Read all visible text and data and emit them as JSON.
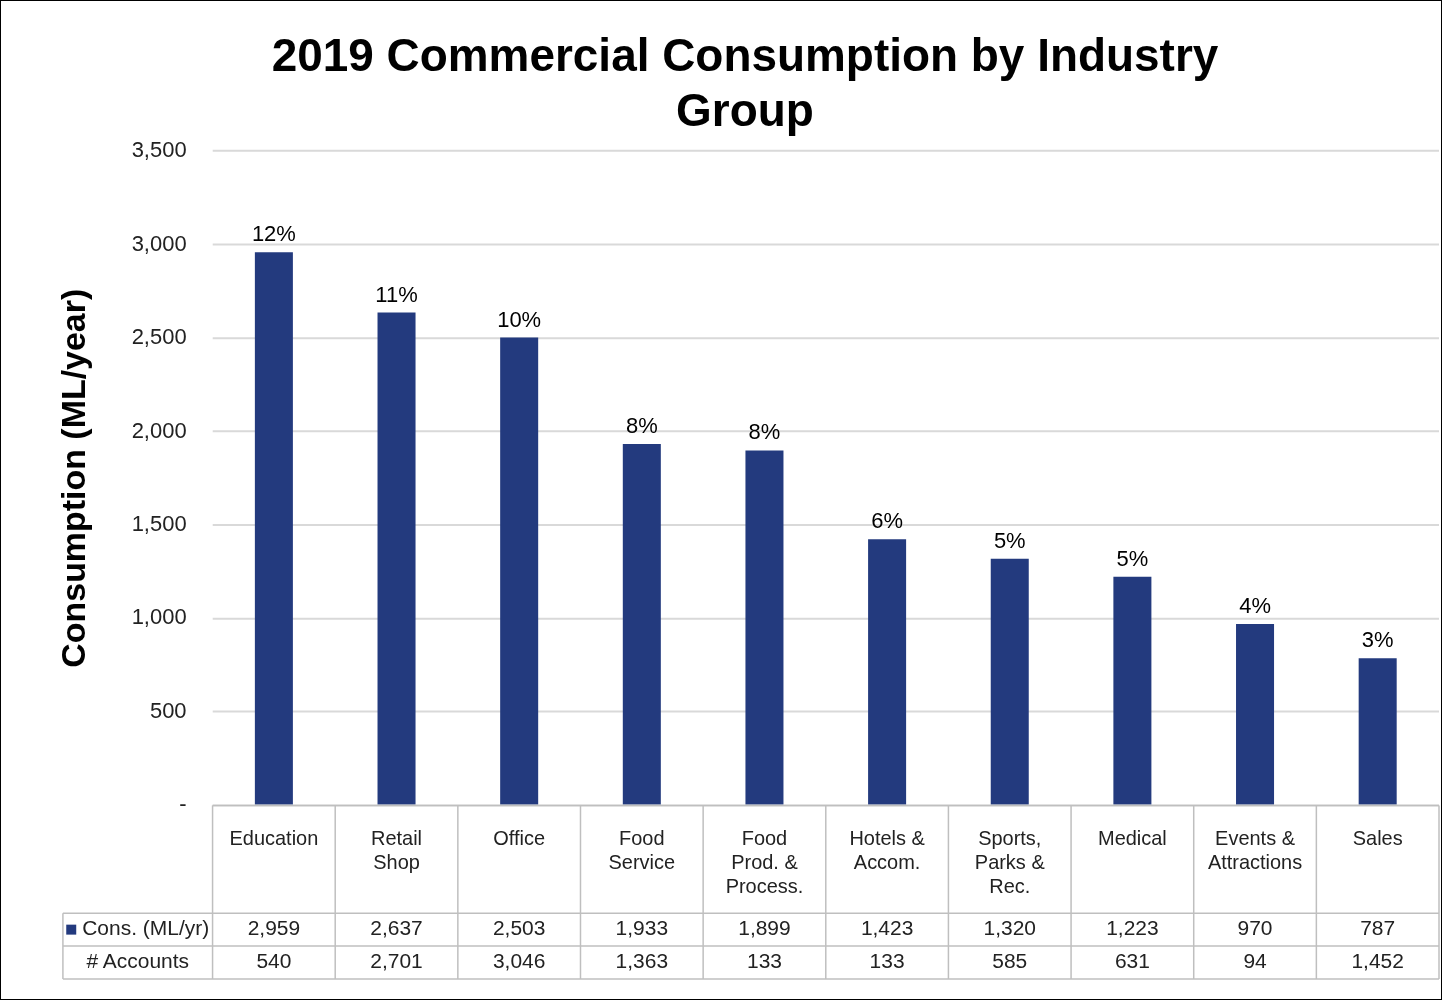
{
  "chart_data": {
    "type": "bar",
    "title": "2019 Commercial Consumption by Industry Group",
    "ylabel": "Consumption (ML/year)",
    "categories": [
      "Education",
      "Retail Shop",
      "Office",
      "Food Service",
      "Food Prod. & Process.",
      "Hotels & Accom.",
      "Sports, Parks & Rec.",
      "Medical",
      "Events & Attractions",
      "Sales"
    ],
    "series": [
      {
        "name": "Cons. (ML/yr)",
        "color": "#233a7e",
        "values": [
          2959,
          2637,
          2503,
          1933,
          1899,
          1423,
          1320,
          1223,
          970,
          787
        ],
        "value_labels": [
          "2,959",
          "2,637",
          "2,503",
          "1,933",
          "1,899",
          "1,423",
          "1,320",
          "1,223",
          "970",
          "787"
        ]
      }
    ],
    "annotations": [
      {
        "text": "12%",
        "x": "Education",
        "y": 2959
      },
      {
        "text": "11%",
        "x": "Retail Shop",
        "y": 2637
      },
      {
        "text": "10%",
        "x": "Office",
        "y": 2503
      },
      {
        "text": "8%",
        "x": "Food Service",
        "y": 1933
      },
      {
        "text": "8%",
        "x": "Food Prod. & Process.",
        "y": 1899
      },
      {
        "text": "6%",
        "x": "Hotels & Accom.",
        "y": 1423
      },
      {
        "text": "5%",
        "x": "Sports, Parks & Rec.",
        "y": 1320
      },
      {
        "text": "5%",
        "x": "Medical",
        "y": 1223
      },
      {
        "text": "4%",
        "x": "Events & Attractions",
        "y": 970
      },
      {
        "text": "3%",
        "x": "Sales",
        "y": 787
      },
      "# Accounts",
      "540",
      "2,701",
      "3,046",
      "1,363",
      "133",
      "133",
      "585",
      "631",
      "94",
      "1,452"
    ],
    "ylim": [
      0,
      3500
    ],
    "yticks": [
      {
        "value": 0,
        "label": "-"
      },
      500,
      {
        "value": 1000,
        "label": "1,000"
      },
      {
        "value": 1500,
        "label": "1,500"
      },
      {
        "value": 2000,
        "label": "2,000"
      },
      {
        "value": 2500,
        "label": "2,500"
      },
      {
        "value": 3000,
        "label": "3,000"
      },
      {
        "value": 3500,
        "label": "3,500"
      }
    ],
    "grid": "y",
    "legend": "bottom"
  }
}
